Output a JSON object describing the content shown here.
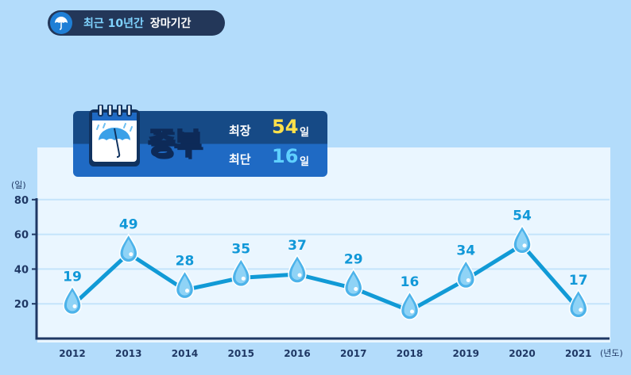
{
  "header": {
    "accent_text": "최근 10년간",
    "main_text": "장마기간"
  },
  "info_card": {
    "region": "중부",
    "longest_label": "최장",
    "longest_value": "54",
    "shortest_label": "최단",
    "shortest_value": "16",
    "unit": "일"
  },
  "colors": {
    "background": "#b3dcfb",
    "panel": "#eaf6ff",
    "line": "#119ad6",
    "value_label": "#1198d8",
    "longest_value": "#ffe14a",
    "shortest_value": "#5fd0ff",
    "axis": "#1f3864"
  },
  "chart_data": {
    "type": "line",
    "categories": [
      "2012",
      "2013",
      "2014",
      "2015",
      "2016",
      "2017",
      "2018",
      "2019",
      "2020",
      "2021"
    ],
    "values": [
      19,
      49,
      28,
      35,
      37,
      29,
      16,
      34,
      54,
      17
    ],
    "ylabel": "(일)",
    "xlabel": "(년도)",
    "yticks": [
      20,
      40,
      60,
      80
    ],
    "ylim": [
      0,
      80
    ],
    "grid": true,
    "marker": "water-drop"
  }
}
